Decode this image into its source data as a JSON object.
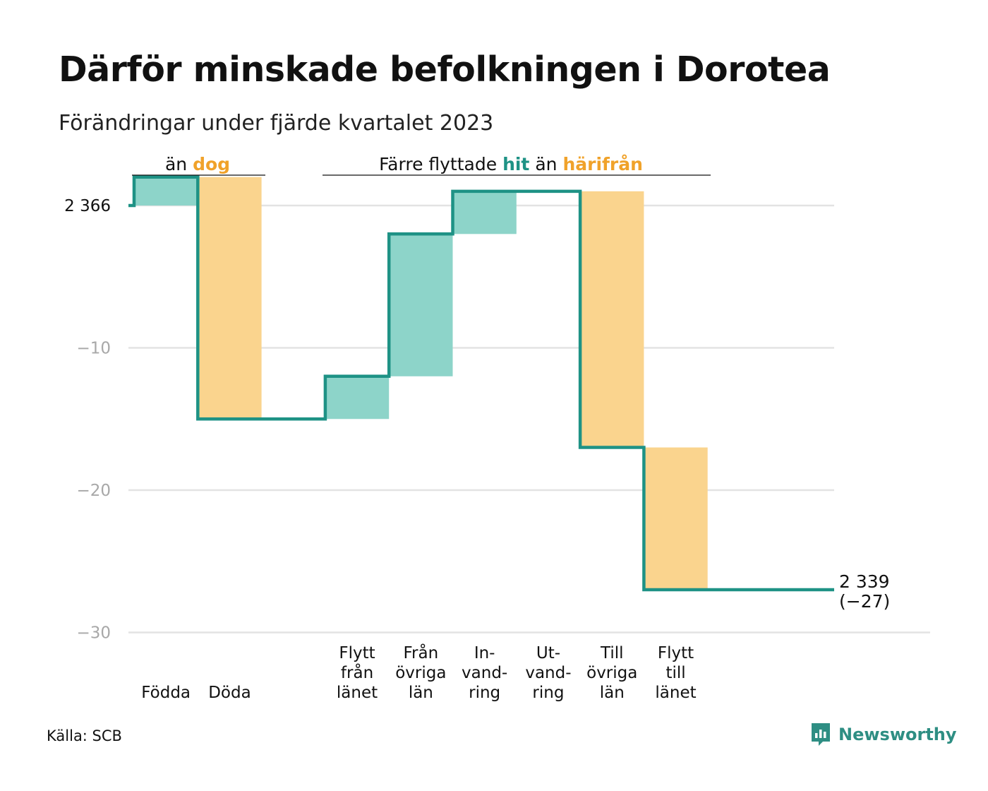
{
  "title": "Därför minskade befolkningen i Dorotea",
  "subtitle": "Förändringar under fjärde kvartalet 2023",
  "source": "Källa: SCB",
  "brand": "Newsworthy",
  "colors": {
    "increase": "#8dd4c9",
    "decrease": "#fad48e",
    "line": "#1e9285",
    "hit_text": "#1e9285",
    "harifran_text": "#f0a22a",
    "dog_text": "#f0a22a",
    "grid": "#e3e3e3",
    "tick_text": "#a8a8a8"
  },
  "annotations": {
    "group1": {
      "prefix": "än",
      "highlight": "dog"
    },
    "group2": {
      "prefix": "Färre flyttade",
      "hit": "hit",
      "middle": "än",
      "highlight": "härifrån"
    }
  },
  "chart_data": {
    "type": "waterfall",
    "start_label": "2 366",
    "start_value": 0,
    "y_ticks": [
      {
        "value": -10,
        "label": "−10"
      },
      {
        "value": -20,
        "label": "−20"
      },
      {
        "value": -30,
        "label": "−30"
      }
    ],
    "ylim": [
      -30,
      2
    ],
    "grid": true,
    "steps": [
      {
        "label": [
          "Födda"
        ],
        "change": 2,
        "kind": "increase"
      },
      {
        "label": [
          "Döda"
        ],
        "change": -17,
        "kind": "decrease"
      },
      {
        "label": [],
        "change": 0,
        "kind": "gap"
      },
      {
        "label": [
          "Flytt",
          "från",
          "länet"
        ],
        "change": 3,
        "kind": "increase"
      },
      {
        "label": [
          "Från",
          "övriga",
          "län"
        ],
        "change": 10,
        "kind": "increase"
      },
      {
        "label": [
          "In-",
          "vand-",
          "ring"
        ],
        "change": 3,
        "kind": "increase"
      },
      {
        "label": [
          "Ut-",
          "vand-",
          "ring"
        ],
        "change": 0,
        "kind": "flat"
      },
      {
        "label": [
          "Till",
          "övriga",
          "län"
        ],
        "change": -18,
        "kind": "decrease"
      },
      {
        "label": [
          "Flytt",
          "till",
          "länet"
        ],
        "change": -10,
        "kind": "decrease"
      }
    ],
    "end_label": [
      "2 339",
      "(−27)"
    ],
    "end_value": -27
  }
}
